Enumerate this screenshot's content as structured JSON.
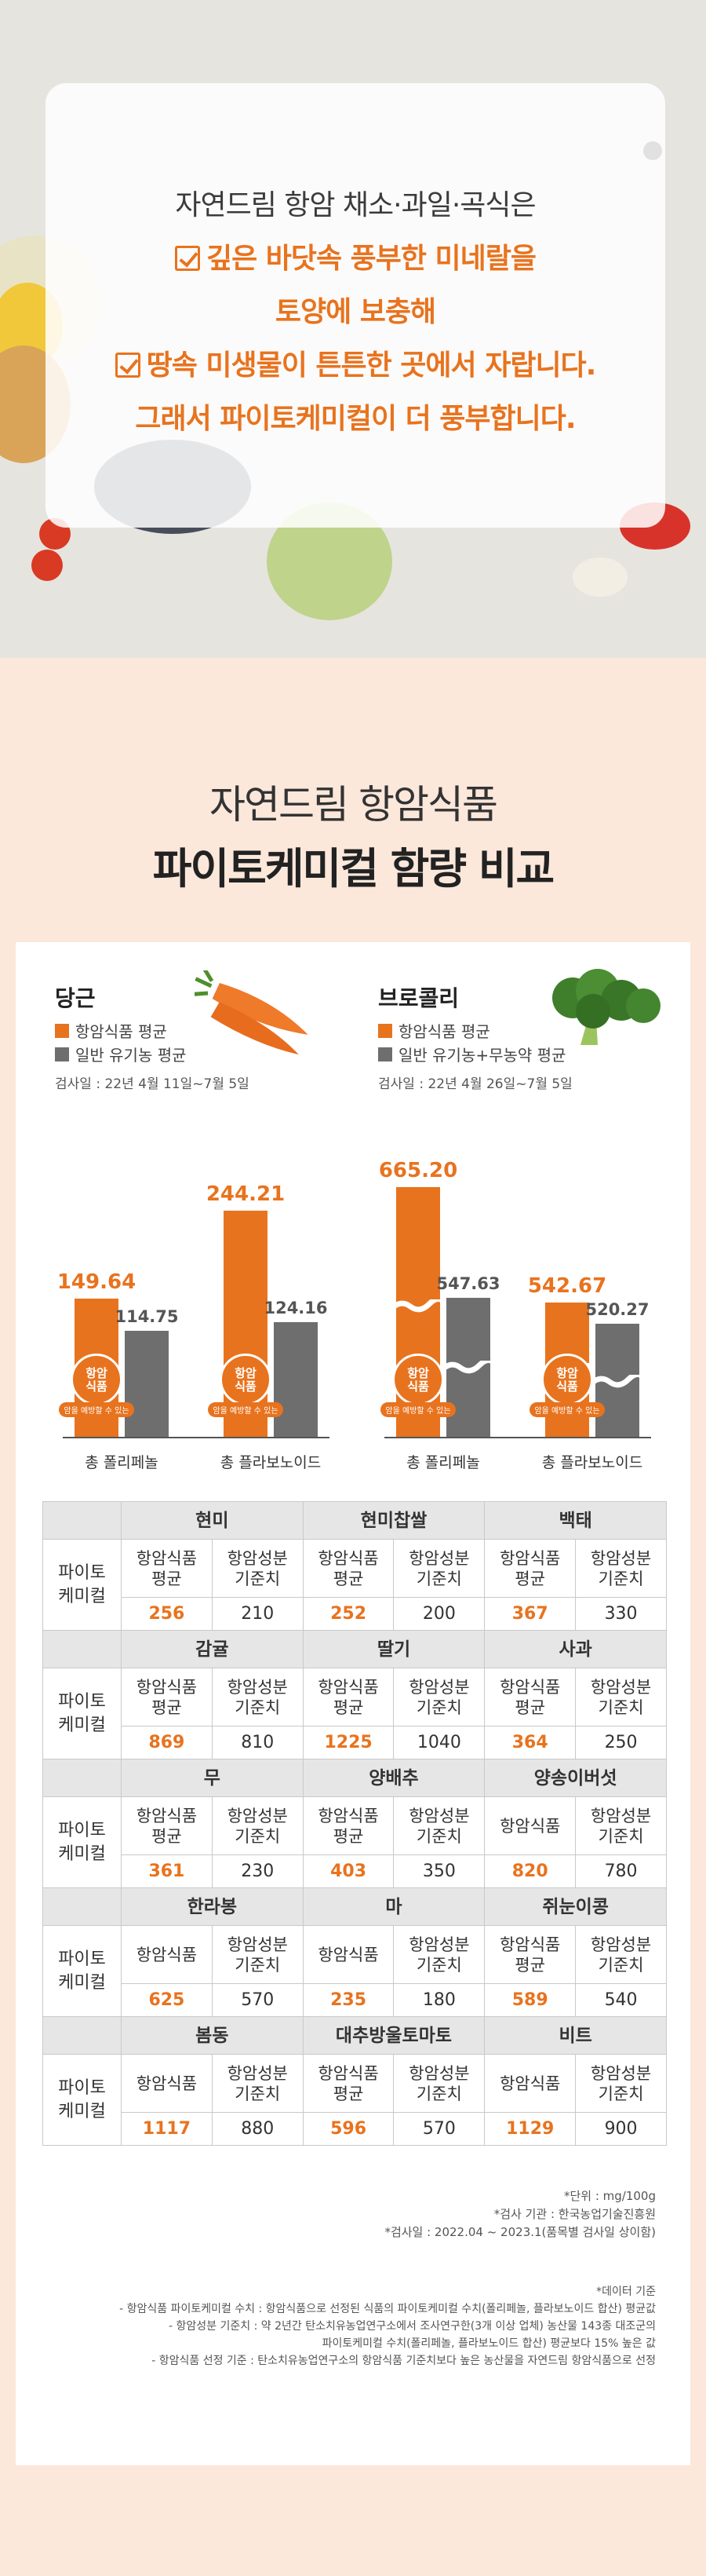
{
  "hero": {
    "line1": "자연드림 항암 채소·과일·곡식은",
    "line2": "깊은 바닷속 풍부한 미네랄을",
    "line3": "토양에 보충해",
    "line4": "땅속 미생물이 튼튼한 곳에서 자랍니다.",
    "line5": "그래서 파이토케미컬이 더 풍부합니다."
  },
  "section": {
    "title1": "자연드림 항암식품",
    "title2": "파이토케미컬 함량 비교"
  },
  "colors": {
    "accent": "#e8731e",
    "gray_bar": "#6e6e6e"
  },
  "carrot": {
    "name": "당근",
    "legend_a": "항암식품 평균",
    "legend_b": "일반 유기농 평균",
    "date": "검사일 : 22년 4월 11일~7월 5일",
    "icon": "carrot-icon"
  },
  "broccoli": {
    "name": "브로콜리",
    "legend_a": "항암식품 평균",
    "legend_b": "일반 유기농+무농약 평균",
    "date": "검사일 : 22년 4월 26일~7월 5일",
    "icon": "broccoli-icon"
  },
  "badge": {
    "label": "항암\n식품",
    "sub": "암을 예방할 수 있는"
  },
  "chart_data": [
    {
      "type": "bar",
      "categories": [
        "총 폴리페놀",
        "총 플라보노이드"
      ],
      "series": [
        {
          "name": "항암식품 평균",
          "values": [
            149.64,
            244.21
          ]
        },
        {
          "name": "일반 유기농 평균",
          "values": [
            114.75,
            124.16
          ]
        }
      ],
      "labels_a": [
        "149.64",
        "244.21"
      ],
      "labels_b": [
        "114.75",
        "124.16"
      ],
      "ylim": [
        0,
        280
      ],
      "legend": "top-left"
    },
    {
      "type": "bar",
      "categories": [
        "총 폴리페놀",
        "총 플라보노이드"
      ],
      "series": [
        {
          "name": "항암식품 평균",
          "values": [
            665.2,
            542.67
          ]
        },
        {
          "name": "일반 유기농+무농약 평균",
          "values": [
            547.63,
            520.27
          ]
        }
      ],
      "labels_a": [
        "665.20",
        "542.67"
      ],
      "labels_b": [
        "547.63",
        "520.27"
      ],
      "axis_break": true,
      "legend": "top-left"
    }
  ],
  "table": {
    "row_label": "파이토\n케미컬",
    "groups": [
      {
        "items": [
          {
            "name": "현미",
            "a": "항암식품\n평균",
            "b": "항암성분\n기준치",
            "av": "256",
            "bv": "210"
          },
          {
            "name": "현미찹쌀",
            "a": "항암식품\n평균",
            "b": "항암성분\n기준치",
            "av": "252",
            "bv": "200"
          },
          {
            "name": "백태",
            "a": "항암식품\n평균",
            "b": "항암성분\n기준치",
            "av": "367",
            "bv": "330"
          }
        ]
      },
      {
        "items": [
          {
            "name": "감귤",
            "a": "항암식품\n평균",
            "b": "항암성분\n기준치",
            "av": "869",
            "bv": "810"
          },
          {
            "name": "딸기",
            "a": "항암식품\n평균",
            "b": "항암성분\n기준치",
            "av": "1225",
            "bv": "1040"
          },
          {
            "name": "사과",
            "a": "항암식품\n평균",
            "b": "항암성분\n기준치",
            "av": "364",
            "bv": "250"
          }
        ]
      },
      {
        "items": [
          {
            "name": "무",
            "a": "항암식품\n평균",
            "b": "항암성분\n기준치",
            "av": "361",
            "bv": "230"
          },
          {
            "name": "양배추",
            "a": "항암식품\n평균",
            "b": "항암성분\n기준치",
            "av": "403",
            "bv": "350"
          },
          {
            "name": "양송이버섯",
            "a": "항암식품",
            "b": "항암성분\n기준치",
            "av": "820",
            "bv": "780"
          }
        ]
      },
      {
        "items": [
          {
            "name": "한라봉",
            "a": "항암식품",
            "b": "항암성분\n기준치",
            "av": "625",
            "bv": "570"
          },
          {
            "name": "마",
            "a": "항암식품",
            "b": "항암성분\n기준치",
            "av": "235",
            "bv": "180"
          },
          {
            "name": "쥐눈이콩",
            "a": "항암식품\n평균",
            "b": "항암성분\n기준치",
            "av": "589",
            "bv": "540"
          }
        ]
      },
      {
        "items": [
          {
            "name": "봄동",
            "a": "항암식품",
            "b": "항암성분\n기준치",
            "av": "1117",
            "bv": "880"
          },
          {
            "name": "대추방울토마토",
            "a": "항암식품\n평균",
            "b": "항암성분\n기준치",
            "av": "596",
            "bv": "570"
          },
          {
            "name": "비트",
            "a": "항암식품",
            "b": "항암성분\n기준치",
            "av": "1129",
            "bv": "900"
          }
        ]
      }
    ]
  },
  "notes": {
    "unit": "*단위 : mg/100g",
    "agency": "*검사 기관 : 한국농업기술진흥원",
    "date": "*검사일 : 2022.04 ~ 2023.1(품목별 검사일 상이함)",
    "basis_title": "*데이터 기준",
    "basis1": "- 항암식품 파이토케미컬 수치 : 항암식품으로 선정된 식품의 파이토케미컬 수치(폴리페놀, 플라보노이드 합산) 평균값",
    "basis2a": "- 항암성분 기준치 : 약 2년간 탄소치유농업연구소에서 조사연구한(3개 이상 업체) 농산물 143종 대조군의",
    "basis2b": "파이토케미컬 수치(폴리페놀, 플라보노이드 합산) 평균보다 15% 높은 값",
    "basis3": "- 항암식품 선정 기준 : 탄소치유농업연구소의 항암식품 기준치보다 높은 농산물을 자연드림 항암식품으로 선정"
  }
}
